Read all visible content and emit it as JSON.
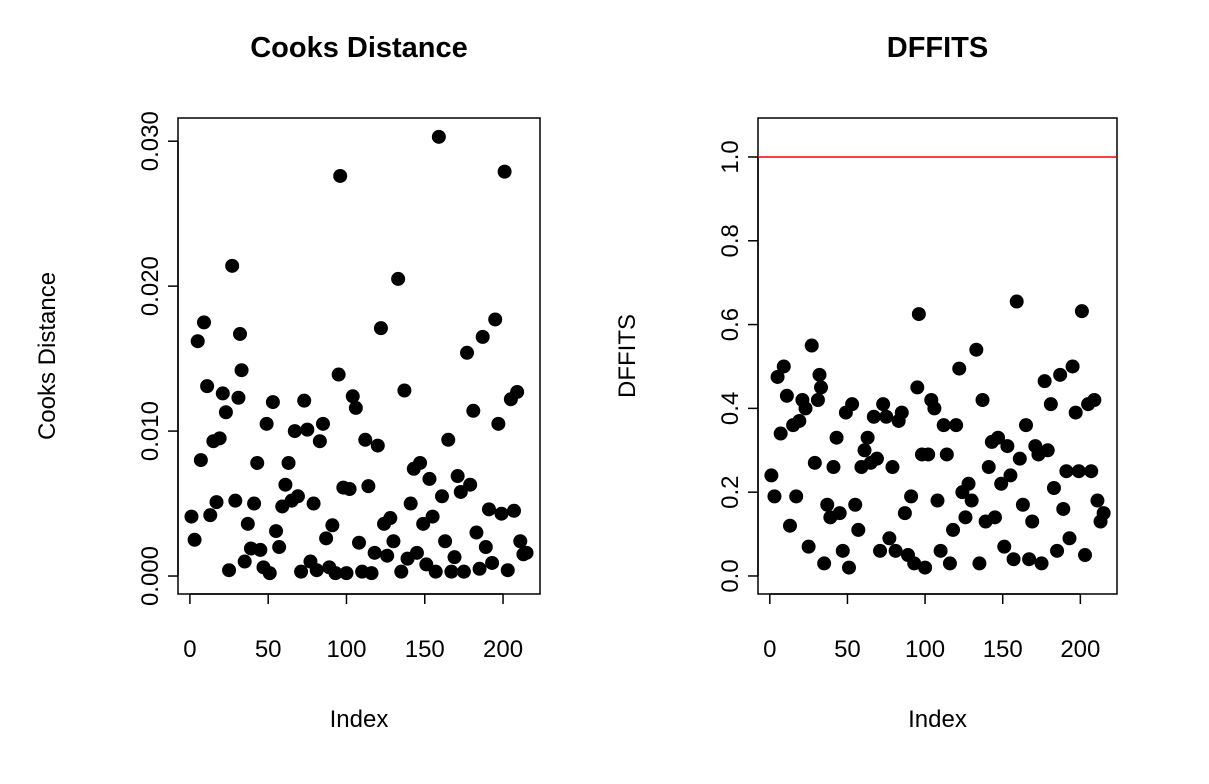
{
  "chart_data": [
    {
      "type": "scatter",
      "title": "Cooks Distance",
      "xlabel": "Index",
      "ylabel": "Cooks Distance",
      "color": "#000000",
      "x": [
        1,
        3,
        5,
        7,
        9,
        11,
        13,
        15,
        17,
        19,
        21,
        23,
        25,
        27,
        29,
        31,
        32,
        33,
        35,
        37,
        39,
        41,
        43,
        45,
        47,
        49,
        51,
        53,
        55,
        57,
        59,
        61,
        63,
        65,
        67,
        69,
        71,
        73,
        75,
        77,
        79,
        81,
        83,
        85,
        87,
        89,
        91,
        93,
        95,
        96,
        98,
        100,
        102,
        104,
        106,
        108,
        110,
        112,
        114,
        116,
        118,
        120,
        122,
        124,
        126,
        128,
        130,
        133,
        135,
        137,
        139,
        141,
        143,
        145,
        147,
        149,
        151,
        153,
        155,
        157,
        159,
        161,
        163,
        165,
        167,
        169,
        171,
        173,
        175,
        177,
        179,
        181,
        183,
        185,
        187,
        189,
        191,
        193,
        195,
        197,
        199,
        201,
        203,
        205,
        207,
        209,
        211,
        213,
        215
      ],
      "values": [
        0.0041,
        0.0025,
        0.0162,
        0.008,
        0.0175,
        0.0131,
        0.0042,
        0.0093,
        0.0051,
        0.0095,
        0.0126,
        0.0113,
        0.0004,
        0.0214,
        0.0052,
        0.0123,
        0.0167,
        0.0142,
        0.001,
        0.0036,
        0.0019,
        0.005,
        0.0078,
        0.0018,
        0.0006,
        0.0105,
        0.0002,
        0.012,
        0.0031,
        0.002,
        0.0048,
        0.0063,
        0.0078,
        0.0052,
        0.01,
        0.0055,
        0.0003,
        0.0121,
        0.0101,
        0.001,
        0.005,
        0.0004,
        0.0093,
        0.0105,
        0.0026,
        0.0006,
        0.0035,
        0.0002,
        0.0139,
        0.0276,
        0.0061,
        0.0002,
        0.006,
        0.0124,
        0.0116,
        0.0023,
        0.0003,
        0.0094,
        0.0062,
        0.0002,
        0.0016,
        0.009,
        0.0171,
        0.0036,
        0.0014,
        0.004,
        0.0024,
        0.0205,
        0.0003,
        0.0128,
        0.0012,
        0.005,
        0.0074,
        0.0016,
        0.0078,
        0.0036,
        0.0008,
        0.0067,
        0.0041,
        0.0003,
        0.0303,
        0.0055,
        0.0024,
        0.0094,
        0.0003,
        0.0013,
        0.0069,
        0.0058,
        0.0003,
        0.0154,
        0.0063,
        0.0114,
        0.003,
        0.0005,
        0.0165,
        0.002,
        0.0046,
        0.0009,
        0.0177,
        0.0105,
        0.0043,
        0.0279,
        0.0004,
        0.0122,
        0.0045,
        0.0127,
        0.0024,
        0.0015,
        0.0016
      ],
      "xlim": [
        -7.6,
        223.6
      ],
      "ylim": [
        -0.00124,
        0.0316
      ],
      "xticks": [
        0,
        50,
        100,
        150,
        200
      ],
      "yticks": [
        {
          "value": 0,
          "label": "0.000"
        },
        {
          "value": 0.01,
          "label": "0.010"
        },
        {
          "value": 0.02,
          "label": "0.020"
        },
        {
          "value": 0.03,
          "label": "0.030"
        }
      ]
    },
    {
      "type": "scatter",
      "title": "DFFITS",
      "xlabel": "Index",
      "ylabel": "DFFITS",
      "color": "#000000",
      "x": [
        1,
        3,
        5,
        7,
        9,
        11,
        13,
        15,
        17,
        19,
        21,
        23,
        25,
        27,
        29,
        31,
        32,
        33,
        35,
        37,
        39,
        41,
        43,
        45,
        47,
        49,
        51,
        53,
        55,
        57,
        59,
        61,
        63,
        65,
        67,
        69,
        71,
        73,
        75,
        77,
        79,
        81,
        83,
        85,
        87,
        89,
        91,
        93,
        95,
        96,
        98,
        100,
        102,
        104,
        106,
        108,
        110,
        112,
        114,
        116,
        118,
        120,
        122,
        124,
        126,
        128,
        130,
        133,
        135,
        137,
        139,
        141,
        143,
        145,
        147,
        149,
        151,
        153,
        155,
        157,
        159,
        161,
        163,
        165,
        167,
        169,
        171,
        173,
        175,
        177,
        179,
        181,
        183,
        185,
        187,
        189,
        191,
        193,
        195,
        197,
        199,
        201,
        203,
        205,
        207,
        209,
        211,
        213,
        215
      ],
      "values": [
        0.24,
        0.19,
        0.475,
        0.34,
        0.5,
        0.43,
        0.12,
        0.36,
        0.19,
        0.37,
        0.42,
        0.4,
        0.07,
        0.55,
        0.27,
        0.42,
        0.48,
        0.45,
        0.03,
        0.17,
        0.14,
        0.26,
        0.33,
        0.15,
        0.06,
        0.39,
        0.02,
        0.41,
        0.17,
        0.11,
        0.26,
        0.3,
        0.33,
        0.27,
        0.38,
        0.28,
        0.06,
        0.41,
        0.38,
        0.09,
        0.26,
        0.06,
        0.37,
        0.39,
        0.15,
        0.05,
        0.19,
        0.03,
        0.45,
        0.625,
        0.29,
        0.02,
        0.29,
        0.42,
        0.4,
        0.18,
        0.06,
        0.36,
        0.29,
        0.03,
        0.11,
        0.36,
        0.495,
        0.2,
        0.14,
        0.22,
        0.18,
        0.54,
        0.03,
        0.42,
        0.13,
        0.26,
        0.32,
        0.14,
        0.33,
        0.22,
        0.07,
        0.31,
        0.24,
        0.04,
        0.655,
        0.28,
        0.17,
        0.36,
        0.04,
        0.13,
        0.31,
        0.29,
        0.03,
        0.465,
        0.3,
        0.41,
        0.21,
        0.06,
        0.48,
        0.16,
        0.25,
        0.09,
        0.5,
        0.39,
        0.25,
        0.632,
        0.05,
        0.41,
        0.25,
        0.42,
        0.18,
        0.13,
        0.15
      ],
      "xlim": [
        -7.6,
        223.6
      ],
      "ylim": [
        -0.043,
        1.093
      ],
      "xticks": [
        0,
        50,
        100,
        150,
        200
      ],
      "yticks": [
        {
          "value": 0,
          "label": "0.0"
        },
        {
          "value": 0.2,
          "label": "0.2"
        },
        {
          "value": 0.4,
          "label": "0.4"
        },
        {
          "value": 0.6,
          "label": "0.6"
        },
        {
          "value": 0.8,
          "label": "0.8"
        },
        {
          "value": 1,
          "label": "1.0"
        }
      ],
      "hline": 1,
      "hline_color": "#ff0000"
    }
  ]
}
